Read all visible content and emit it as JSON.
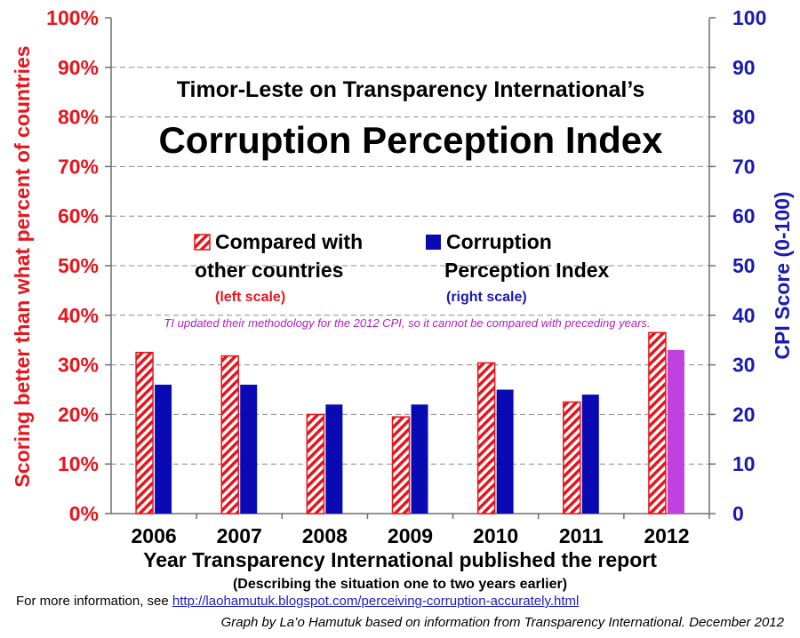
{
  "chart_data": {
    "type": "bar",
    "title": "Timor-Leste on Transparency International’s",
    "subtitle": "Corruption Perception Index",
    "categories": [
      "2006",
      "2007",
      "2008",
      "2009",
      "2010",
      "2011",
      "2012"
    ],
    "series": [
      {
        "name": "Compared with other countries",
        "axis": "left",
        "pattern": "red-white-hatch",
        "color": "#e8141c",
        "values": [
          32.5,
          31.8,
          20.0,
          19.5,
          30.4,
          22.5,
          36.5
        ]
      },
      {
        "name": "Corruption Perception Index",
        "axis": "right",
        "color": "#0a0ab4",
        "highlight_color": "#c040e0",
        "highlight_index": 6,
        "values": [
          26,
          26,
          22,
          22,
          25,
          24,
          33
        ]
      }
    ],
    "ylabel_left": "Scoring better than what percent of countries",
    "ylabel_right": "CPI Score (0-100)",
    "xlabel": "Year Transparency International published the report",
    "xsublabel": "(Describing the situation one to two years earlier)",
    "ylim_left": [
      0,
      100
    ],
    "ylim_right": [
      0,
      100
    ],
    "yticks_left": [
      "0%",
      "10%",
      "20%",
      "30%",
      "40%",
      "50%",
      "60%",
      "70%",
      "80%",
      "90%",
      "100%"
    ],
    "yticks_right": [
      "0",
      "10",
      "20",
      "30",
      "40",
      "50",
      "60",
      "70",
      "80",
      "90",
      "100"
    ],
    "grid": true,
    "legend": {
      "placement": "center",
      "items": [
        {
          "line1": "Compared with",
          "line2": "other countries",
          "sub": "(left scale)",
          "color": "#e8141c"
        },
        {
          "line1": "Corruption",
          "line2": "Perception Index",
          "sub": "(right scale)",
          "color": "#0a0ab4"
        }
      ]
    },
    "annotation": "TI updated their methodology for the 2012 CPI, so it cannot be compared with preceding years."
  },
  "footer": {
    "info_prefix": "For more information, see ",
    "info_link": "http://laohamutuk.blogspot.com/perceiving-corruption-accurately.html",
    "credit": "Graph by La’o Hamutuk based on information from Transparency International.  December 2012"
  }
}
